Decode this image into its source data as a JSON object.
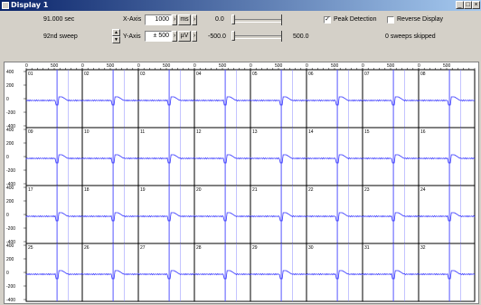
{
  "window": {
    "title": "Display 1",
    "controls": {
      "minimize": "_",
      "maximize": "□",
      "close": "×"
    }
  },
  "toolbar": {
    "time": "91.000 sec",
    "sweep": "92nd sweep",
    "xaxis_label": "X-Axis",
    "xaxis_value": "1000",
    "xaxis_unit": "ms",
    "yaxis_label": "Y-Axis",
    "yaxis_value": "± 500",
    "yaxis_unit": "µV",
    "slider1_value": "0.0",
    "slider2_min": "-500.0",
    "slider2_max": "500.0",
    "peak_detection_label": "Peak Detection",
    "peak_detection_checked": true,
    "reverse_display_label": "Reverse Display",
    "reverse_display_checked": false,
    "sweeps_skipped": "0 sweeps skipped"
  },
  "grid": {
    "x_ticks": [
      "0",
      "500"
    ],
    "y_ticks": [
      "400",
      "200",
      "0",
      "-200",
      "-400"
    ],
    "channels": [
      [
        "01",
        "02",
        "03",
        "04",
        "05",
        "06",
        "07",
        "08"
      ],
      [
        "09",
        "10",
        "11",
        "12",
        "13",
        "14",
        "15",
        "16"
      ],
      [
        "17",
        "18",
        "19",
        "20",
        "21",
        "22",
        "23",
        "24"
      ],
      [
        "25",
        "26",
        "27",
        "28",
        "29",
        "30",
        "31",
        "32"
      ]
    ],
    "trace_color": "#3333ff",
    "marker_color": "#5555ff"
  }
}
